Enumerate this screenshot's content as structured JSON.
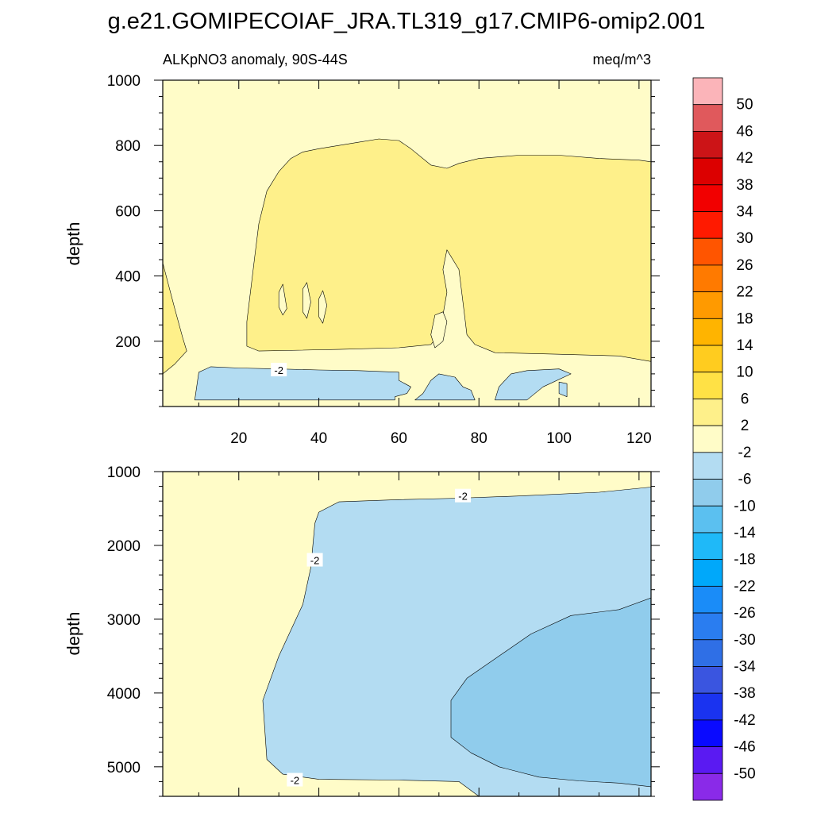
{
  "title": "g.e21.GOMIPECOIAF_JRA.TL319_g17.CMIP6-omip2.001",
  "colorbar": {
    "labels": [
      "50",
      "46",
      "42",
      "38",
      "34",
      "30",
      "26",
      "22",
      "18",
      "14",
      "10",
      "6",
      "2",
      "-2",
      "-6",
      "-10",
      "-14",
      "-18",
      "-22",
      "-26",
      "-30",
      "-34",
      "-38",
      "-42",
      "-46",
      "-50"
    ],
    "colors": [
      "#fbb4b9",
      "#e0595c",
      "#cc1417",
      "#dc0000",
      "#f20000",
      "#ff1a00",
      "#ff5500",
      "#ff7a00",
      "#ff9a00",
      "#ffb400",
      "#ffcc1f",
      "#ffe145",
      "#fef08a",
      "#fffcc8",
      "#b3dcf2",
      "#90ccec",
      "#5bc0f0",
      "#1fb9f8",
      "#00a8fa",
      "#1a8cf8",
      "#2a7df0",
      "#2f6fe6",
      "#3a55e0",
      "#1a33f0",
      "#0a0aff",
      "#5a1af2",
      "#8a2ae8"
    ]
  },
  "chart_data": [
    {
      "type": "heatmap",
      "subtitle_left": "ALKpNO3 anomaly, 90S-44S",
      "subtitle_right": "meq/m^3",
      "xlabel": "",
      "ylabel": "depth",
      "xlim": [
        1,
        123
      ],
      "ylim": [
        1000,
        0
      ],
      "x_ticks": [
        20,
        40,
        60,
        80,
        100,
        120
      ],
      "y_ticks": [
        200,
        400,
        600,
        800,
        1000
      ],
      "contour_labels": [
        {
          "text": "-2",
          "x": 30,
          "y": 112
        }
      ],
      "regions": [
        {
          "level": "0 to 2",
          "color": "#fffcc8",
          "points": [
            [
              1,
              0
            ],
            [
              123,
              0
            ],
            [
              123,
              1000
            ],
            [
              1,
              1000
            ]
          ]
        },
        {
          "level": "-2 to 0",
          "color": "#b3dcf2",
          "points": [
            [
              9,
              20
            ],
            [
              59,
              20
            ],
            [
              59,
              30
            ],
            [
              62,
              40
            ],
            [
              63,
              60
            ],
            [
              60,
              80
            ],
            [
              60,
              105
            ],
            [
              50,
              110
            ],
            [
              40,
              112
            ],
            [
              30,
              115
            ],
            [
              20,
              118
            ],
            [
              13,
              122
            ],
            [
              10,
              105
            ]
          ]
        },
        {
          "level": "-2 to 0",
          "color": "#b3dcf2",
          "points": [
            [
              64,
              20
            ],
            [
              66,
              40
            ],
            [
              68,
              80
            ],
            [
              70,
              100
            ],
            [
              74,
              90
            ],
            [
              76,
              60
            ],
            [
              78,
              50
            ],
            [
              79,
              20
            ]
          ]
        },
        {
          "level": "-2 to 0",
          "color": "#b3dcf2",
          "points": [
            [
              84,
              20
            ],
            [
              85,
              60
            ],
            [
              88,
              100
            ],
            [
              92,
              110
            ],
            [
              100,
              115
            ],
            [
              103,
              100
            ],
            [
              96,
              60
            ],
            [
              92,
              20
            ]
          ]
        },
        {
          "level": "-2 to 0",
          "color": "#b3dcf2",
          "points": [
            [
              100,
              40
            ],
            [
              102,
              30
            ],
            [
              102,
              70
            ],
            [
              100,
              75
            ]
          ]
        },
        {
          "level": "2 to 6",
          "color": "#fef08a",
          "points": [
            [
              1,
              100
            ],
            [
              4,
              130
            ],
            [
              7,
              170
            ],
            [
              6,
              210
            ],
            [
              4,
              300
            ],
            [
              1,
              440
            ]
          ]
        },
        {
          "level": "2 to 6",
          "color": "#fef08a",
          "points": [
            [
              22,
              185
            ],
            [
              25,
              170
            ],
            [
              45,
              175
            ],
            [
              60,
              180
            ],
            [
              68,
              190
            ],
            [
              70,
              220
            ],
            [
              71,
              280
            ],
            [
              72,
              350
            ],
            [
              71,
              420
            ],
            [
              72,
              480
            ],
            [
              75,
              420
            ],
            [
              76,
              320
            ],
            [
              77,
              220
            ],
            [
              79,
              190
            ],
            [
              84,
              165
            ],
            [
              100,
              160
            ],
            [
              115,
              155
            ],
            [
              123,
              138
            ],
            [
              123,
              750
            ],
            [
              120,
              755
            ],
            [
              110,
              760
            ],
            [
              100,
              770
            ],
            [
              90,
              770
            ],
            [
              80,
              760
            ],
            [
              75,
              745
            ],
            [
              72,
              730
            ],
            [
              68,
              740
            ],
            [
              63,
              790
            ],
            [
              60,
              815
            ],
            [
              55,
              820
            ],
            [
              50,
              810
            ],
            [
              45,
              800
            ],
            [
              40,
              790
            ],
            [
              36,
              780
            ],
            [
              33,
              760
            ],
            [
              30,
              720
            ],
            [
              27,
              660
            ],
            [
              25,
              560
            ],
            [
              24,
              460
            ],
            [
              23,
              360
            ],
            [
              22,
              260
            ]
          ]
        },
        {
          "level": "0 to 2",
          "color": "#fffcc8",
          "points": [
            [
              69,
              180
            ],
            [
              71,
              200
            ],
            [
              72,
              260
            ],
            [
              71,
              290
            ],
            [
              69,
              280
            ],
            [
              68,
              220
            ]
          ]
        },
        {
          "level": "0 to 2",
          "color": "#fffcc8",
          "points": [
            [
              30,
              305
            ],
            [
              31,
              280
            ],
            [
              32,
              300
            ],
            [
              31,
              375
            ],
            [
              30,
              350
            ]
          ]
        },
        {
          "level": "0 to 2",
          "color": "#fffcc8",
          "points": [
            [
              36,
              290
            ],
            [
              37,
              270
            ],
            [
              38,
              320
            ],
            [
              37,
              380
            ],
            [
              36,
              360
            ]
          ]
        },
        {
          "level": "0 to 2",
          "color": "#fffcc8",
          "points": [
            [
              40,
              275
            ],
            [
              41,
              255
            ],
            [
              42,
              310
            ],
            [
              41,
              355
            ],
            [
              40,
              330
            ]
          ]
        }
      ]
    },
    {
      "type": "heatmap",
      "xlabel": "",
      "ylabel": "depth",
      "xlim": [
        1,
        123
      ],
      "ylim": [
        1000,
        5400
      ],
      "x_ticks": [
        20,
        40,
        60,
        80,
        100,
        120
      ],
      "y_ticks": [
        1000,
        2000,
        3000,
        4000,
        5000
      ],
      "contour_labels": [
        {
          "text": "-2",
          "x": 76,
          "y": 1330
        },
        {
          "text": "-2",
          "x": 39,
          "y": 2200
        },
        {
          "text": "-2",
          "x": 34,
          "y": 5180
        }
      ],
      "regions": [
        {
          "level": "0 to 2",
          "color": "#fffcc8",
          "points": [
            [
              1,
              1000
            ],
            [
              123,
              1000
            ],
            [
              123,
              5400
            ],
            [
              1,
              5400
            ]
          ]
        },
        {
          "level": "-2 to 0",
          "color": "#b3dcf2",
          "points": [
            [
              39,
              1700
            ],
            [
              40,
              1550
            ],
            [
              45,
              1410
            ],
            [
              60,
              1380
            ],
            [
              75,
              1360
            ],
            [
              90,
              1330
            ],
            [
              110,
              1280
            ],
            [
              123,
              1210
            ],
            [
              123,
              5400
            ],
            [
              80,
              5400
            ],
            [
              75,
              5200
            ],
            [
              60,
              5180
            ],
            [
              40,
              5170
            ],
            [
              31,
              5100
            ],
            [
              27,
              4900
            ],
            [
              26,
              4100
            ],
            [
              30,
              3500
            ],
            [
              36,
              2800
            ],
            [
              38,
              2300
            ]
          ]
        },
        {
          "level": "-6 to -2",
          "color": "#90ccec",
          "points": [
            [
              73,
              4600
            ],
            [
              73,
              4100
            ],
            [
              77,
              3800
            ],
            [
              85,
              3500
            ],
            [
              93,
              3200
            ],
            [
              103,
              2950
            ],
            [
              115,
              2870
            ],
            [
              123,
              2710
            ],
            [
              123,
              5270
            ],
            [
              115,
              5220
            ],
            [
              105,
              5190
            ],
            [
              95,
              5140
            ],
            [
              85,
              5000
            ],
            [
              78,
              4810
            ]
          ]
        }
      ]
    }
  ]
}
